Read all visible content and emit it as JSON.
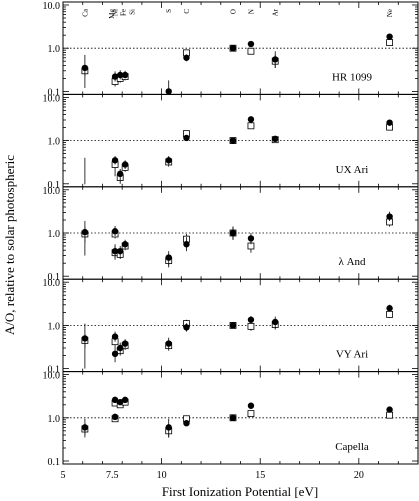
{
  "chart_data": {
    "type": "scatter",
    "xlabel": "First Ionization Potential [eV]",
    "ylabel": "A/O, relative to solar photospheric",
    "xlim": [
      5,
      23
    ],
    "ylim": [
      0.1,
      10
    ],
    "y_scale": "log",
    "x_ticks": [
      5,
      6,
      7,
      8,
      9,
      10,
      11,
      12,
      13,
      14,
      15,
      16,
      17,
      18,
      19,
      20,
      21,
      22,
      23
    ],
    "x_tick_labels": [
      {
        "value": 5,
        "label": "5"
      },
      {
        "value": 7.5,
        "label": "7.5"
      },
      {
        "value": 10,
        "label": "10"
      },
      {
        "value": 15,
        "label": "15"
      },
      {
        "value": 20,
        "label": "20"
      }
    ],
    "y_tick_labels": [
      {
        "value": 10,
        "label": "10.0"
      },
      {
        "value": 1,
        "label": "1.0"
      },
      {
        "value": 0.1,
        "label": "0.1"
      }
    ],
    "reference_line": 1.0,
    "element_labels": [
      {
        "name": "Ca",
        "fip": 6.11
      },
      {
        "name": "Mg",
        "fip": 7.65
      },
      {
        "name": "Ni",
        "fip": 7.64
      },
      {
        "name": "Fe",
        "fip": 7.9
      },
      {
        "name": "Si",
        "fip": 8.15
      },
      {
        "name": "S",
        "fip": 10.36
      },
      {
        "name": "C",
        "fip": 11.26
      },
      {
        "name": "O",
        "fip": 13.62
      },
      {
        "name": "N",
        "fip": 14.53
      },
      {
        "name": "Ar",
        "fip": 15.76
      },
      {
        "name": "Ne",
        "fip": 21.56
      }
    ],
    "series_markers": {
      "filled": "filled-circle",
      "open": "open-square"
    },
    "panels": [
      {
        "label": "HR 1099",
        "filled": [
          {
            "x": 6.11,
            "y": 0.35,
            "lo": 0.12,
            "hi": 0.7
          },
          {
            "x": 7.64,
            "y": 0.22,
            "lo": 0.17,
            "hi": 0.29
          },
          {
            "x": 7.9,
            "y": 0.24,
            "lo": 0.19,
            "hi": 0.31
          },
          {
            "x": 8.15,
            "y": 0.24,
            "lo": 0.2,
            "hi": 0.3
          },
          {
            "x": 10.36,
            "y": 0.1,
            "lo": 0.06,
            "hi": 0.18
          },
          {
            "x": 11.26,
            "y": 0.6,
            "lo": 0.5,
            "hi": 0.72
          },
          {
            "x": 13.62,
            "y": 1.0,
            "lo": 0.95,
            "hi": 1.05
          },
          {
            "x": 14.53,
            "y": 1.25,
            "lo": 1.1,
            "hi": 1.4
          },
          {
            "x": 15.76,
            "y": 0.55,
            "lo": 0.35,
            "hi": 0.85
          },
          {
            "x": 21.56,
            "y": 1.85,
            "lo": 1.65,
            "hi": 2.1
          }
        ],
        "open": [
          {
            "x": 6.11,
            "y": 0.3,
            "lo": 0.22,
            "hi": 0.4
          },
          {
            "x": 7.64,
            "y": 0.17,
            "lo": 0.13,
            "hi": 0.22
          },
          {
            "x": 7.9,
            "y": 0.2,
            "lo": 0.16,
            "hi": 0.25
          },
          {
            "x": 8.15,
            "y": 0.22,
            "lo": 0.18,
            "hi": 0.27
          },
          {
            "x": 11.26,
            "y": 0.78,
            "lo": 0.65,
            "hi": 0.92
          },
          {
            "x": 13.62,
            "y": 1.0,
            "lo": 0.95,
            "hi": 1.05
          },
          {
            "x": 14.53,
            "y": 0.85,
            "lo": 0.72,
            "hi": 1.0
          },
          {
            "x": 15.76,
            "y": 0.5,
            "lo": 0.35,
            "hi": 0.7
          },
          {
            "x": 21.56,
            "y": 1.35,
            "lo": 1.15,
            "hi": 1.6
          }
        ]
      },
      {
        "label": "UX Ari",
        "filled": [
          {
            "x": 6.11,
            "y": 0.07,
            "lo": 0.04,
            "hi": 0.4
          },
          {
            "x": 7.64,
            "y": 0.35,
            "lo": 0.28,
            "hi": 0.44
          },
          {
            "x": 7.9,
            "y": 0.17,
            "lo": 0.12,
            "hi": 0.22
          },
          {
            "x": 8.15,
            "y": 0.28,
            "lo": 0.22,
            "hi": 0.35
          },
          {
            "x": 10.36,
            "y": 0.35,
            "lo": 0.28,
            "hi": 0.44
          },
          {
            "x": 11.26,
            "y": 1.15,
            "lo": 1.0,
            "hi": 1.32
          },
          {
            "x": 13.62,
            "y": 1.0,
            "lo": 0.95,
            "hi": 1.05
          },
          {
            "x": 14.53,
            "y": 3.1,
            "lo": 2.8,
            "hi": 3.4
          },
          {
            "x": 15.76,
            "y": 1.1,
            "lo": 0.95,
            "hi": 1.28
          },
          {
            "x": 21.56,
            "y": 2.6,
            "lo": 2.35,
            "hi": 2.9
          }
        ],
        "open": [
          {
            "x": 7.64,
            "y": 0.28,
            "lo": 0.15,
            "hi": 0.4
          },
          {
            "x": 7.9,
            "y": 0.14,
            "lo": 0.1,
            "hi": 0.19
          },
          {
            "x": 8.15,
            "y": 0.24,
            "lo": 0.19,
            "hi": 0.3
          },
          {
            "x": 10.36,
            "y": 0.32,
            "lo": 0.25,
            "hi": 0.4
          },
          {
            "x": 11.26,
            "y": 1.45,
            "lo": 1.25,
            "hi": 1.7
          },
          {
            "x": 13.62,
            "y": 1.0,
            "lo": 0.95,
            "hi": 1.05
          },
          {
            "x": 14.53,
            "y": 2.2,
            "lo": 1.95,
            "hi": 2.5
          },
          {
            "x": 15.76,
            "y": 1.05,
            "lo": 0.9,
            "hi": 1.22
          },
          {
            "x": 21.56,
            "y": 2.05,
            "lo": 1.8,
            "hi": 2.3
          }
        ]
      },
      {
        "label": "λ And",
        "filled": [
          {
            "x": 6.11,
            "y": 1.05,
            "lo": 0.3,
            "hi": 1.9
          },
          {
            "x": 7.64,
            "y": 1.1,
            "lo": 0.85,
            "hi": 1.45
          },
          {
            "x": 7.64,
            "y": 0.38,
            "lo": 0.26,
            "hi": 0.55
          },
          {
            "x": 7.9,
            "y": 0.38,
            "lo": 0.28,
            "hi": 0.5
          },
          {
            "x": 8.15,
            "y": 0.55,
            "lo": 0.44,
            "hi": 0.7
          },
          {
            "x": 10.36,
            "y": 0.27,
            "lo": 0.18,
            "hi": 0.38
          },
          {
            "x": 11.26,
            "y": 0.55,
            "lo": 0.38,
            "hi": 0.8
          },
          {
            "x": 13.62,
            "y": 1.0,
            "lo": 0.7,
            "hi": 1.4
          },
          {
            "x": 14.53,
            "y": 0.75,
            "lo": 0.55,
            "hi": 1.0
          },
          {
            "x": 21.56,
            "y": 2.4,
            "lo": 1.9,
            "hi": 3.1
          }
        ],
        "open": [
          {
            "x": 6.11,
            "y": 0.95,
            "lo": 0.6,
            "hi": 1.4
          },
          {
            "x": 7.64,
            "y": 0.95,
            "lo": 0.75,
            "hi": 1.2
          },
          {
            "x": 7.64,
            "y": 0.35,
            "lo": 0.24,
            "hi": 0.5
          },
          {
            "x": 7.9,
            "y": 0.32,
            "lo": 0.25,
            "hi": 0.42
          },
          {
            "x": 8.15,
            "y": 0.5,
            "lo": 0.4,
            "hi": 0.62
          },
          {
            "x": 10.36,
            "y": 0.23,
            "lo": 0.16,
            "hi": 0.32
          },
          {
            "x": 11.26,
            "y": 0.72,
            "lo": 0.55,
            "hi": 0.95
          },
          {
            "x": 13.62,
            "y": 1.0,
            "lo": 0.7,
            "hi": 1.4
          },
          {
            "x": 14.53,
            "y": 0.5,
            "lo": 0.35,
            "hi": 0.7
          },
          {
            "x": 21.56,
            "y": 1.8,
            "lo": 1.4,
            "hi": 2.3
          }
        ]
      },
      {
        "label": "VY Ari",
        "filled": [
          {
            "x": 6.11,
            "y": 0.5,
            "lo": 0.1,
            "hi": 1.1
          },
          {
            "x": 7.64,
            "y": 0.55,
            "lo": 0.42,
            "hi": 0.72
          },
          {
            "x": 7.64,
            "y": 0.22,
            "lo": 0.14,
            "hi": 0.32
          },
          {
            "x": 7.9,
            "y": 0.3,
            "lo": 0.22,
            "hi": 0.4
          },
          {
            "x": 8.15,
            "y": 0.38,
            "lo": 0.3,
            "hi": 0.48
          },
          {
            "x": 10.36,
            "y": 0.38,
            "lo": 0.28,
            "hi": 0.52
          },
          {
            "x": 11.26,
            "y": 0.9,
            "lo": 0.72,
            "hi": 1.12
          },
          {
            "x": 13.62,
            "y": 1.0,
            "lo": 0.88,
            "hi": 1.14
          },
          {
            "x": 14.53,
            "y": 1.35,
            "lo": 1.1,
            "hi": 1.65
          },
          {
            "x": 15.76,
            "y": 1.2,
            "lo": 0.85,
            "hi": 1.6
          },
          {
            "x": 21.56,
            "y": 2.5,
            "lo": 2.1,
            "hi": 3.0
          }
        ],
        "open": [
          {
            "x": 6.11,
            "y": 0.45,
            "lo": 0.3,
            "hi": 0.65
          },
          {
            "x": 7.64,
            "y": 0.42,
            "lo": 0.32,
            "hi": 0.55
          },
          {
            "x": 7.9,
            "y": 0.26,
            "lo": 0.2,
            "hi": 0.34
          },
          {
            "x": 8.15,
            "y": 0.34,
            "lo": 0.27,
            "hi": 0.43
          },
          {
            "x": 10.36,
            "y": 0.34,
            "lo": 0.26,
            "hi": 0.45
          },
          {
            "x": 11.26,
            "y": 1.1,
            "lo": 0.9,
            "hi": 1.35
          },
          {
            "x": 13.62,
            "y": 1.0,
            "lo": 0.88,
            "hi": 1.14
          },
          {
            "x": 14.53,
            "y": 0.95,
            "lo": 0.75,
            "hi": 1.2
          },
          {
            "x": 15.76,
            "y": 1.05,
            "lo": 0.8,
            "hi": 1.4
          },
          {
            "x": 21.56,
            "y": 1.8,
            "lo": 1.5,
            "hi": 2.2
          }
        ]
      },
      {
        "label": "Capella",
        "filled": [
          {
            "x": 6.11,
            "y": 0.6,
            "lo": 0.35,
            "hi": 0.95
          },
          {
            "x": 7.64,
            "y": 2.6,
            "lo": 2.3,
            "hi": 2.9
          },
          {
            "x": 7.64,
            "y": 1.05,
            "lo": 0.95,
            "hi": 1.15
          },
          {
            "x": 7.9,
            "y": 2.3,
            "lo": 2.05,
            "hi": 2.6
          },
          {
            "x": 8.15,
            "y": 2.6,
            "lo": 2.35,
            "hi": 2.9
          },
          {
            "x": 10.36,
            "y": 0.6,
            "lo": 0.35,
            "hi": 0.95
          },
          {
            "x": 11.26,
            "y": 0.75,
            "lo": 0.68,
            "hi": 0.83
          },
          {
            "x": 13.62,
            "y": 1.0,
            "lo": 0.95,
            "hi": 1.05
          },
          {
            "x": 14.53,
            "y": 1.9,
            "lo": 1.7,
            "hi": 2.1
          },
          {
            "x": 21.56,
            "y": 1.55,
            "lo": 1.4,
            "hi": 1.72
          }
        ],
        "open": [
          {
            "x": 6.11,
            "y": 0.55,
            "lo": 0.4,
            "hi": 0.75
          },
          {
            "x": 7.64,
            "y": 2.2,
            "lo": 1.95,
            "hi": 2.5
          },
          {
            "x": 7.64,
            "y": 0.95,
            "lo": 0.85,
            "hi": 1.05
          },
          {
            "x": 7.9,
            "y": 2.0,
            "lo": 1.8,
            "hi": 2.25
          },
          {
            "x": 8.15,
            "y": 2.3,
            "lo": 2.05,
            "hi": 2.55
          },
          {
            "x": 10.36,
            "y": 0.5,
            "lo": 0.35,
            "hi": 0.7
          },
          {
            "x": 11.26,
            "y": 0.95,
            "lo": 0.85,
            "hi": 1.05
          },
          {
            "x": 13.62,
            "y": 1.0,
            "lo": 0.95,
            "hi": 1.05
          },
          {
            "x": 14.53,
            "y": 1.25,
            "lo": 1.1,
            "hi": 1.4
          },
          {
            "x": 21.56,
            "y": 1.15,
            "lo": 1.0,
            "hi": 1.3
          }
        ]
      }
    ]
  }
}
